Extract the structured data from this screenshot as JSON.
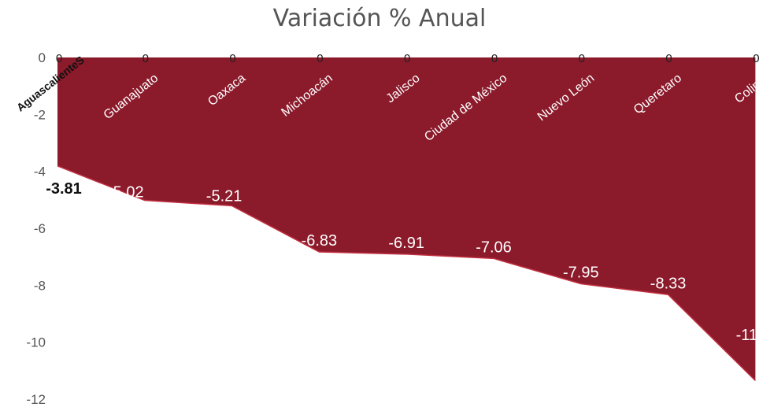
{
  "chart_data": {
    "type": "area",
    "title": "Variación % Anual",
    "xlabel": "",
    "ylabel": "",
    "categories": [
      "AguascalienteS",
      "Guanajuato",
      "Oaxaca",
      "Michoacán",
      "Jalisco",
      "Ciudad de México",
      "Nuevo León",
      "Queretaro",
      "Colima"
    ],
    "series": [
      {
        "values": [
          -3.81,
          -5.02,
          -5.21,
          -6.83,
          -6.91,
          -7.06,
          -7.95,
          -8.33,
          -11.35
        ]
      }
    ],
    "data_labels": [
      "-3.81",
      "-5.02",
      "-5.21",
      "-6.83",
      "-6.91",
      "-7.06",
      "-7.95",
      "-8.33",
      "-11"
    ],
    "zero_labels": [
      "0",
      "0",
      "0",
      "0",
      "0",
      "0",
      "0",
      "0",
      "0"
    ],
    "ylim": [
      -12,
      0
    ],
    "yticks": [
      0,
      -2,
      -4,
      -6,
      -8,
      -10,
      -12
    ],
    "grid": false,
    "legend": "none",
    "colors": {
      "fill": "#8b1a2b",
      "stroke": "#c23040",
      "axis_text": "#555555"
    }
  }
}
